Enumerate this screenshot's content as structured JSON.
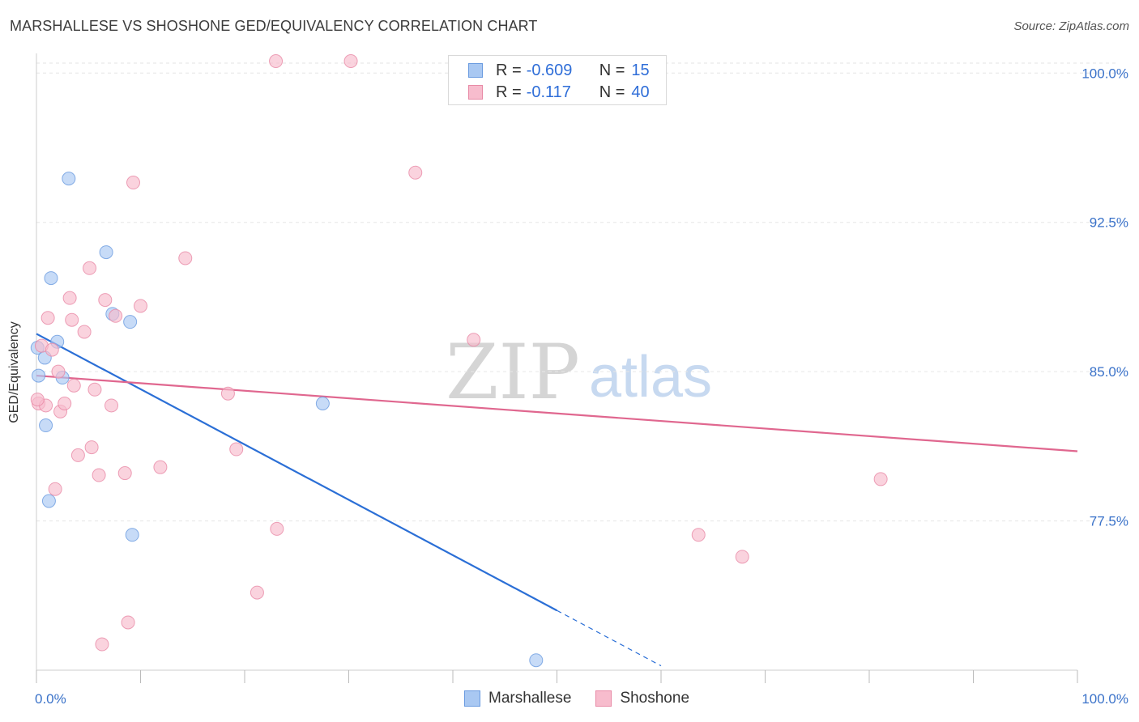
{
  "title": "MARSHALLESE VS SHOSHONE GED/EQUIVALENCY CORRELATION CHART",
  "source": "Source: ZipAtlas.com",
  "watermark": {
    "zip": "ZIP",
    "atlas": "atlas"
  },
  "legend": {
    "rows": [
      {
        "r_label": "R =",
        "r_value": "-0.609",
        "n_label": "N =",
        "n_value": "15",
        "color": "#a9c8f2",
        "stroke": "#6a9be0"
      },
      {
        "r_label": "R =",
        "r_value": "-0.117",
        "n_label": "N =",
        "n_value": "40",
        "color": "#f7bccd",
        "stroke": "#e88aa6"
      }
    ]
  },
  "bottom_legend": [
    {
      "label": "Marshallese",
      "color": "#a9c8f2",
      "stroke": "#6a9be0"
    },
    {
      "label": "Shoshone",
      "color": "#f7bccd",
      "stroke": "#e88aa6"
    }
  ],
  "chart_data": {
    "type": "scatter",
    "title": "MARSHALLESE VS SHOSHONE GED/EQUIVALENCY CORRELATION CHART",
    "xlabel": "",
    "ylabel": "GED/Equivalency",
    "xlim": [
      0,
      100
    ],
    "ylim": [
      70.0,
      100.5
    ],
    "x_tick_labels": [
      "0.0%",
      "100.0%"
    ],
    "y_ticks": [
      100.0,
      92.5,
      85.0,
      77.5
    ],
    "y_tick_labels": [
      "100.0%",
      "92.5%",
      "85.0%",
      "77.5%"
    ],
    "grid": true,
    "series": [
      {
        "name": "Marshallese",
        "color": "#6a9be0",
        "fill": "#a9c8f2",
        "points": [
          [
            0.1,
            86.2
          ],
          [
            0.2,
            84.8
          ],
          [
            0.8,
            85.7
          ],
          [
            0.9,
            82.3
          ],
          [
            1.2,
            78.5
          ],
          [
            1.4,
            89.7
          ],
          [
            2.0,
            86.5
          ],
          [
            2.5,
            84.7
          ],
          [
            3.1,
            94.7
          ],
          [
            6.7,
            91.0
          ],
          [
            7.3,
            87.9
          ],
          [
            9.0,
            87.5
          ],
          [
            9.2,
            76.8
          ],
          [
            27.5,
            83.4
          ],
          [
            48.0,
            70.5
          ]
        ],
        "trend": {
          "x0": 0.0,
          "y0": 86.9,
          "x1": 50.0,
          "y1": 73.0,
          "dash_to_x": 60.0
        }
      },
      {
        "name": "Shoshone",
        "color": "#e88aa6",
        "fill": "#f7bccd",
        "points": [
          [
            0.2,
            83.4
          ],
          [
            0.5,
            86.3
          ],
          [
            0.9,
            83.3
          ],
          [
            1.1,
            87.7
          ],
          [
            1.5,
            86.1
          ],
          [
            1.8,
            79.1
          ],
          [
            2.1,
            85.0
          ],
          [
            2.3,
            83.0
          ],
          [
            2.7,
            83.4
          ],
          [
            3.2,
            88.7
          ],
          [
            3.4,
            87.6
          ],
          [
            3.6,
            84.3
          ],
          [
            4.0,
            80.8
          ],
          [
            4.6,
            87.0
          ],
          [
            5.1,
            90.2
          ],
          [
            5.3,
            81.2
          ],
          [
            5.6,
            84.1
          ],
          [
            6.0,
            79.8
          ],
          [
            6.6,
            88.6
          ],
          [
            7.2,
            83.3
          ],
          [
            7.6,
            87.8
          ],
          [
            8.5,
            79.9
          ],
          [
            8.8,
            72.4
          ],
          [
            9.3,
            94.5
          ],
          [
            10.0,
            88.3
          ],
          [
            11.9,
            80.2
          ],
          [
            14.3,
            90.7
          ],
          [
            18.4,
            83.9
          ],
          [
            19.2,
            81.1
          ],
          [
            21.2,
            73.9
          ],
          [
            23.0,
            100.6
          ],
          [
            23.1,
            77.1
          ],
          [
            30.2,
            100.6
          ],
          [
            36.4,
            95.0
          ],
          [
            42.0,
            86.6
          ],
          [
            63.6,
            76.8
          ],
          [
            67.8,
            75.7
          ],
          [
            81.1,
            79.6
          ],
          [
            6.3,
            71.3
          ],
          [
            0.1,
            83.6
          ]
        ],
        "trend": {
          "x0": 0.0,
          "y0": 84.8,
          "x1": 100.0,
          "y1": 81.0
        }
      }
    ]
  }
}
